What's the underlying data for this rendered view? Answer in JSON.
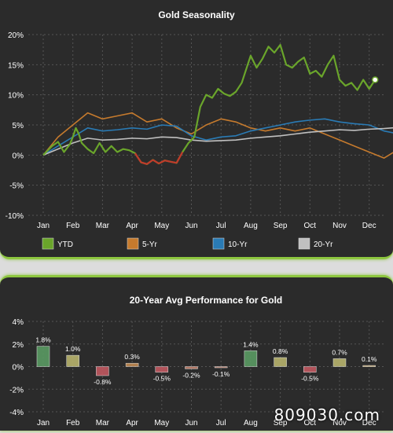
{
  "watermark": "809030.com",
  "chart_data": [
    {
      "type": "line",
      "title": "Gold Seasonality",
      "x_ticks": [
        "Jan",
        "Feb",
        "Mar",
        "Apr",
        "May",
        "Jun",
        "Jul",
        "Aug",
        "Sep",
        "Oct",
        "Nov",
        "Dec"
      ],
      "y_ticks": [
        "20%",
        "15%",
        "10%",
        "5%",
        "0%",
        "-5%",
        "-10%"
      ],
      "ylim": [
        -10,
        20
      ],
      "grid": true,
      "legend_position": "bottom",
      "negative_color": "#c0392b",
      "series": [
        {
          "name": "YTD",
          "color": "#6aa52b",
          "x": [
            0,
            0.1,
            0.3,
            0.5,
            0.7,
            0.9,
            1.0,
            1.1,
            1.2,
            1.3,
            1.5,
            1.7,
            1.9,
            2.1,
            2.3,
            2.5,
            2.7,
            2.9,
            3.1,
            3.3,
            3.5,
            3.7,
            3.9,
            4.1,
            4.3,
            4.5,
            4.7,
            4.9,
            5.1,
            5.3,
            5.5,
            5.7,
            5.9,
            6.1,
            6.3,
            6.5,
            6.7,
            6.9,
            7.0,
            7.2,
            7.4,
            7.6,
            7.8,
            8.0,
            8.2,
            8.4,
            8.6,
            8.8,
            9.0,
            9.2,
            9.4,
            9.6,
            9.8,
            10.0,
            10.2,
            10.4,
            10.6,
            10.8,
            11.0,
            11.2
          ],
          "y": [
            0,
            0.5,
            1.5,
            2.2,
            0.5,
            1.8,
            3.0,
            4.5,
            3.5,
            2.0,
            1.0,
            0.3,
            2.0,
            0.5,
            1.5,
            0.5,
            1.0,
            0.8,
            0.3,
            -1.2,
            -1.5,
            -0.8,
            -1.4,
            -0.9,
            -1.1,
            -1.3,
            0.5,
            2.0,
            3.0,
            8.0,
            10.0,
            9.5,
            11.0,
            10.2,
            9.8,
            10.5,
            12.0,
            15.0,
            16.5,
            14.5,
            16.0,
            18.0,
            17.0,
            18.3,
            15.0,
            14.5,
            15.5,
            16.2,
            13.5,
            14.0,
            13.0,
            15.0,
            16.5,
            12.5,
            11.5,
            12.0,
            10.8,
            12.5,
            11.0,
            12.5
          ]
        },
        {
          "name": "5-Yr",
          "color": "#c57a2d",
          "x": [
            0,
            0.5,
            1,
            1.5,
            2,
            2.5,
            3,
            3.5,
            4,
            4.5,
            5,
            5.5,
            6,
            6.5,
            7,
            7.5,
            8,
            8.5,
            9,
            9.5,
            10,
            10.5,
            11,
            11.5,
            12
          ],
          "y": [
            0,
            3,
            5,
            7,
            6,
            6.5,
            7,
            5.5,
            6,
            4.5,
            3.5,
            5,
            6,
            5.5,
            4.5,
            4,
            4.5,
            4,
            4.5,
            3.5,
            2.5,
            1.5,
            0.5,
            -0.5,
            1
          ]
        },
        {
          "name": "10-Yr",
          "color": "#2a7bb5",
          "x": [
            0,
            0.5,
            1,
            1.5,
            2,
            2.5,
            3,
            3.5,
            4,
            4.5,
            5,
            5.5,
            6,
            6.5,
            7,
            7.5,
            8,
            8.5,
            9,
            9.5,
            10,
            10.5,
            11,
            11.5,
            12
          ],
          "y": [
            0,
            1.5,
            3,
            4.5,
            4,
            4.2,
            4.5,
            4.3,
            5,
            4.8,
            3.2,
            2.5,
            3,
            3.2,
            4,
            4.5,
            5,
            5.5,
            5.8,
            6,
            5.5,
            5.2,
            5,
            4,
            3.5
          ]
        },
        {
          "name": "20-Yr",
          "color": "#c0c0c0",
          "x": [
            0,
            0.5,
            1,
            1.5,
            2,
            2.5,
            3,
            3.5,
            4,
            4.5,
            5,
            5.5,
            6,
            6.5,
            7,
            7.5,
            8,
            8.5,
            9,
            9.5,
            10,
            10.5,
            11,
            11.5,
            12
          ],
          "y": [
            0,
            1,
            2,
            2.8,
            2.5,
            2.6,
            2.8,
            2.7,
            3,
            2.9,
            2.5,
            2.3,
            2.4,
            2.5,
            2.8,
            3,
            3.2,
            3.5,
            3.8,
            4,
            4.2,
            4.1,
            4.3,
            4.4,
            4.6
          ]
        }
      ]
    },
    {
      "type": "bar",
      "title": "20-Year Avg Performance for Gold",
      "categories": [
        "Jan",
        "Feb",
        "Mar",
        "Apr",
        "May",
        "Jun",
        "Jul",
        "Aug",
        "Sep",
        "Oct",
        "Nov",
        "Dec"
      ],
      "values": [
        1.8,
        1.0,
        -0.8,
        0.3,
        -0.5,
        -0.2,
        -0.1,
        1.4,
        0.8,
        -0.5,
        0.7,
        0.1
      ],
      "labels": [
        "1.8%",
        "1.0%",
        "-0.8%",
        "0.3%",
        "-0.5%",
        "-0.2%",
        "-0.1%",
        "1.4%",
        "0.8%",
        "-0.5%",
        "0.7%",
        "0.1%"
      ],
      "colors": [
        "#5a9a63",
        "#b7b36d",
        "#c0585f",
        "#c08a52",
        "#c0585f",
        "#c0806a",
        "#c0806a",
        "#5a9a63",
        "#b7b36d",
        "#c0585f",
        "#b7b36d",
        "#c9a86a"
      ],
      "y_ticks": [
        "4%",
        "2%",
        "0%",
        "-2%",
        "-4%"
      ],
      "ylim": [
        -4,
        4
      ],
      "grid": true
    }
  ]
}
